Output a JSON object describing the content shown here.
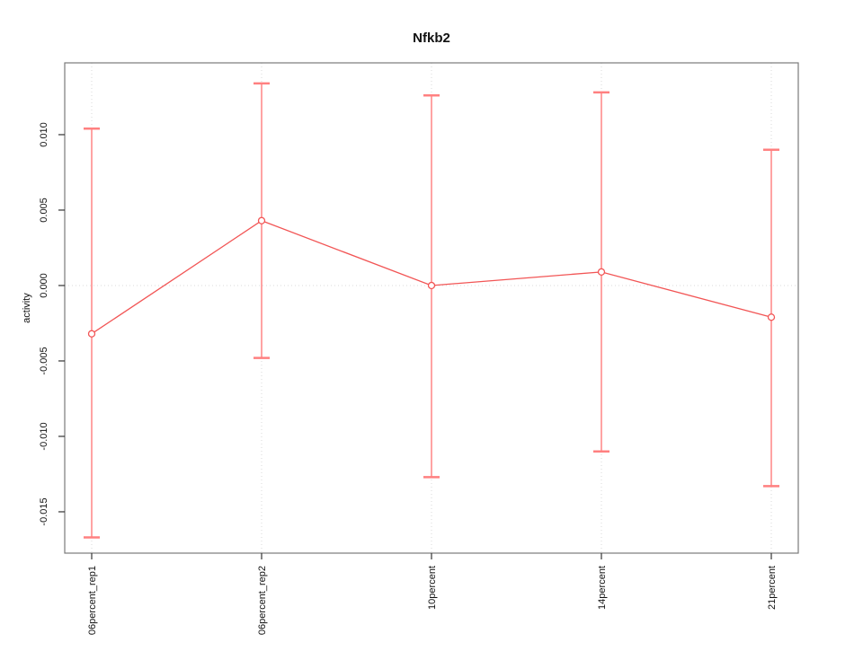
{
  "chart_data": {
    "type": "line",
    "title": "Nfkb2",
    "xlabel": "",
    "ylabel": "activity",
    "categories": [
      "06percent_rep1",
      "06percent_rep2",
      "10percent",
      "14percent",
      "21percent"
    ],
    "series": [
      {
        "name": "activity",
        "values": [
          -0.0032,
          0.0043,
          0.0,
          0.0009,
          -0.0021
        ],
        "upper": [
          0.0104,
          0.0134,
          0.0126,
          0.0128,
          0.009
        ],
        "lower": [
          -0.0167,
          -0.0048,
          -0.0127,
          -0.011,
          -0.0133
        ]
      }
    ],
    "point_style": "open-circle",
    "ytick_labels": [
      "0.010",
      "0.005",
      "0.000",
      "-0.005",
      "-0.010",
      "-0.015"
    ],
    "ytick_values": [
      0.01,
      0.005,
      0.0,
      -0.005,
      -0.01,
      -0.015
    ],
    "ylim": [
      -0.01774,
      0.01476
    ],
    "legend": "none",
    "grid": {
      "vertical_dotted_at_each_category": true,
      "horizontal_dotted_at_zero": true
    },
    "colors": {
      "series_line": "#f25555",
      "error_bar": "#ffa3a3",
      "error_cap": "#ff8080",
      "grid_line": "#d9d9d9",
      "plot_border": "#7a7a7a",
      "tick_mark": "#333333",
      "text": "#111111"
    }
  }
}
